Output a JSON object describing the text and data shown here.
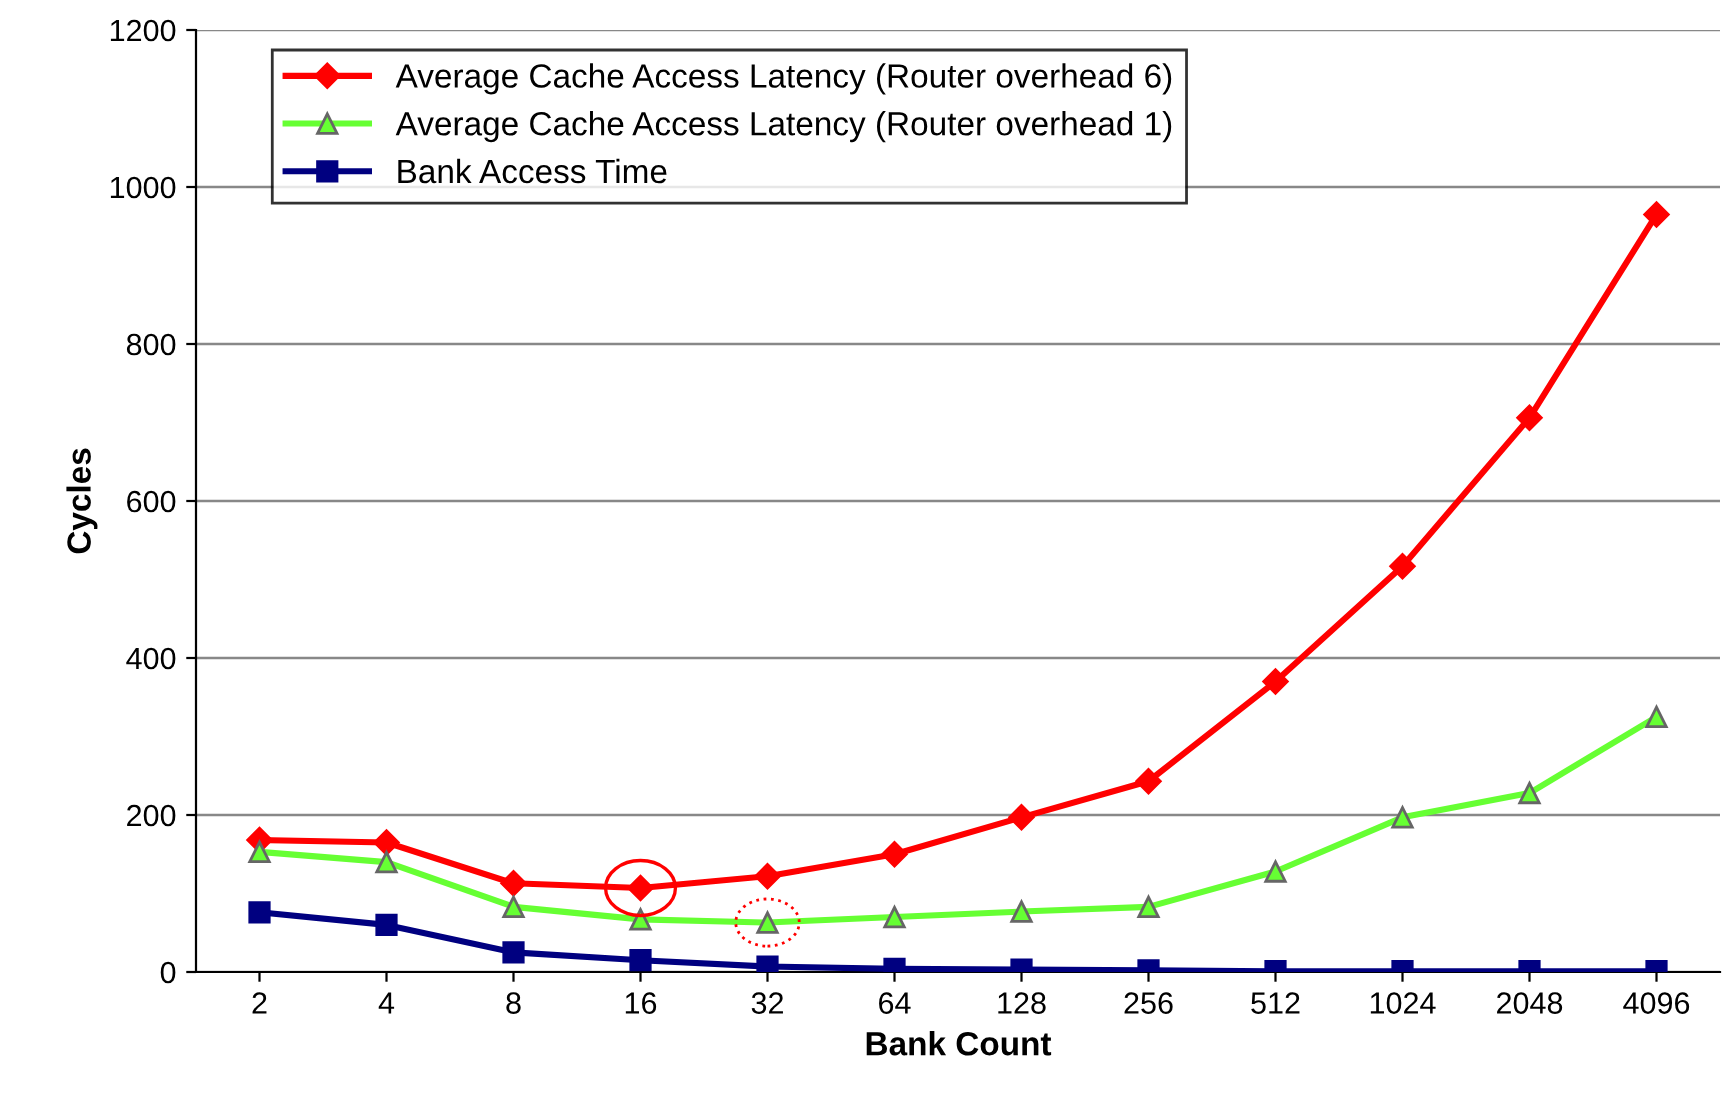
{
  "chart_data": {
    "type": "line",
    "xlabel": "Bank Count",
    "ylabel": "Cycles",
    "categories": [
      "2",
      "4",
      "8",
      "16",
      "32",
      "64",
      "128",
      "256",
      "512",
      "1024",
      "2048",
      "4096"
    ],
    "series": [
      {
        "name": "Average Cache Access Latency (Router overhead 6)",
        "color": "#ff0000",
        "marker": "diamond",
        "values": [
          168,
          165,
          113,
          107,
          122,
          150,
          197,
          243,
          370,
          517,
          706,
          965
        ]
      },
      {
        "name": "Average Cache Access Latency (Router overhead 1)",
        "color": "#66ff33",
        "marker": "triangle",
        "values": [
          153,
          140,
          83,
          67,
          63,
          70,
          77,
          83,
          128,
          197,
          228,
          325
        ]
      },
      {
        "name": "Bank Access Time",
        "color": "#000080",
        "marker": "square",
        "values": [
          76,
          60,
          25,
          15,
          7,
          4,
          3,
          2,
          1,
          1,
          1,
          1
        ]
      }
    ],
    "ylim": [
      0,
      1200
    ],
    "yticks": [
      0,
      200,
      400,
      600,
      800,
      1000,
      1200
    ],
    "grid": "y",
    "legend": "top",
    "line_style": "solid"
  }
}
